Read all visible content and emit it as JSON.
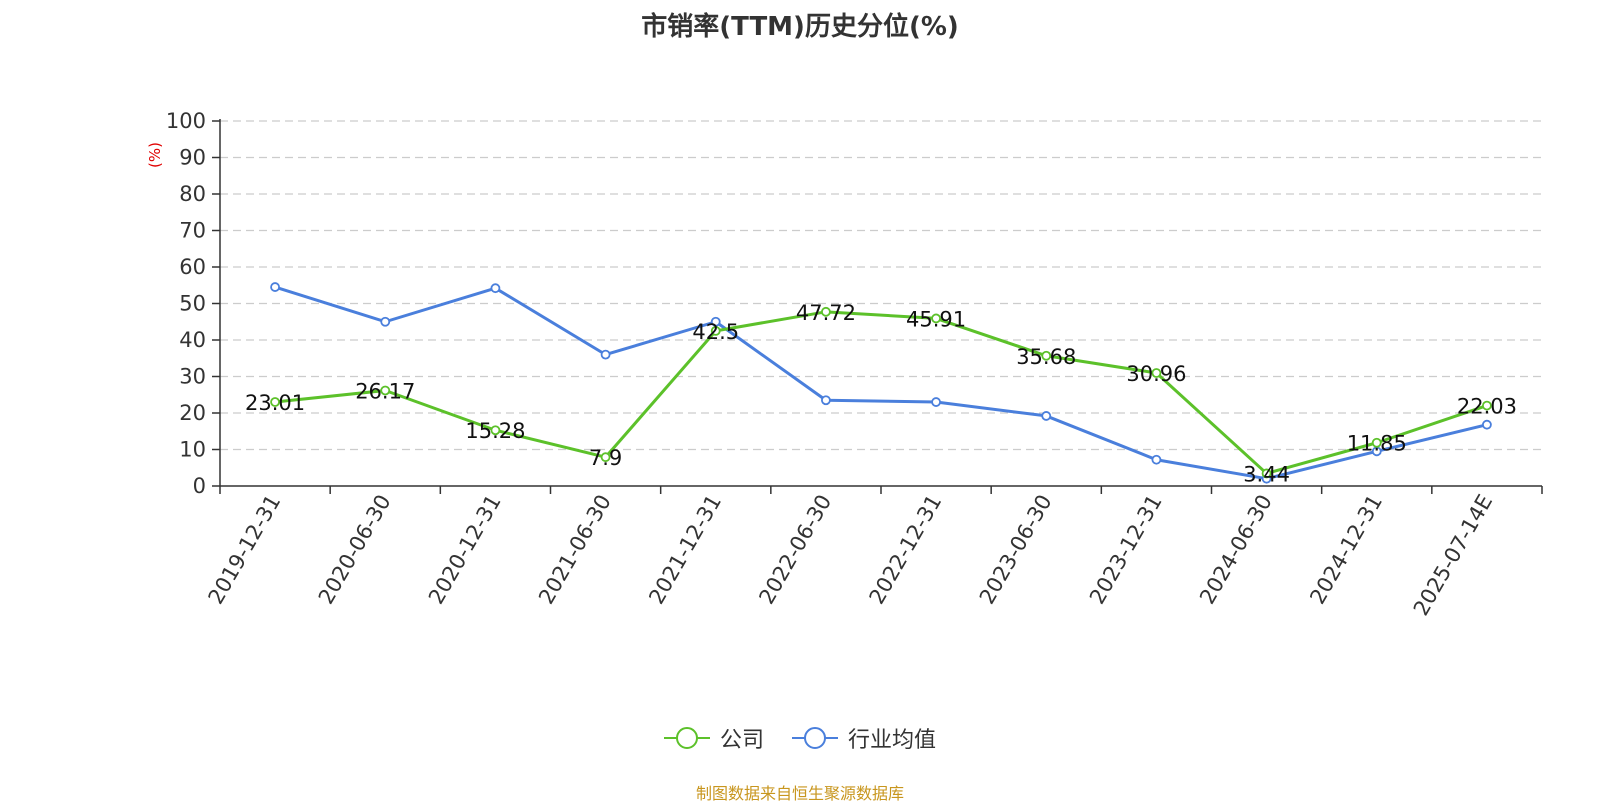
{
  "chart_data": {
    "type": "line",
    "title": "市销率(TTM)历史分位(%)",
    "ylabel": "(%)",
    "xlabel": "",
    "ylim": [
      0,
      100
    ],
    "yticks": [
      0,
      10,
      20,
      30,
      40,
      50,
      60,
      70,
      80,
      90,
      100
    ],
    "grid": true,
    "legend_position": "bottom",
    "categories": [
      "2019-12-31",
      "2020-06-30",
      "2020-12-31",
      "2021-06-30",
      "2021-12-31",
      "2022-06-30",
      "2022-12-31",
      "2023-06-30",
      "2023-12-31",
      "2024-06-30",
      "2024-12-31",
      "2025-07-14E"
    ],
    "series": [
      {
        "name": "公司",
        "color": "#5cc12a",
        "values": [
          23.01,
          26.17,
          15.28,
          7.9,
          42.5,
          47.72,
          45.91,
          35.68,
          30.96,
          3.44,
          11.85,
          22.03
        ],
        "data_labels": [
          "23.01",
          "26.17",
          "15.28",
          "7.9",
          "42.5",
          "47.72",
          "45.91",
          "35.68",
          "30.96",
          "3.44",
          "11.85",
          "22.03"
        ]
      },
      {
        "name": "行业均值",
        "color": "#4a7fdc",
        "values": [
          54.5,
          45.0,
          54.2,
          36.0,
          45.0,
          23.5,
          23.0,
          19.2,
          7.2,
          2.0,
          9.5,
          16.8
        ]
      }
    ]
  },
  "legend": {
    "items": [
      {
        "label": "公司",
        "color": "#5cc12a"
      },
      {
        "label": "行业均值",
        "color": "#4a7fdc"
      }
    ]
  },
  "source_note": "制图数据来自恒生聚源数据库"
}
